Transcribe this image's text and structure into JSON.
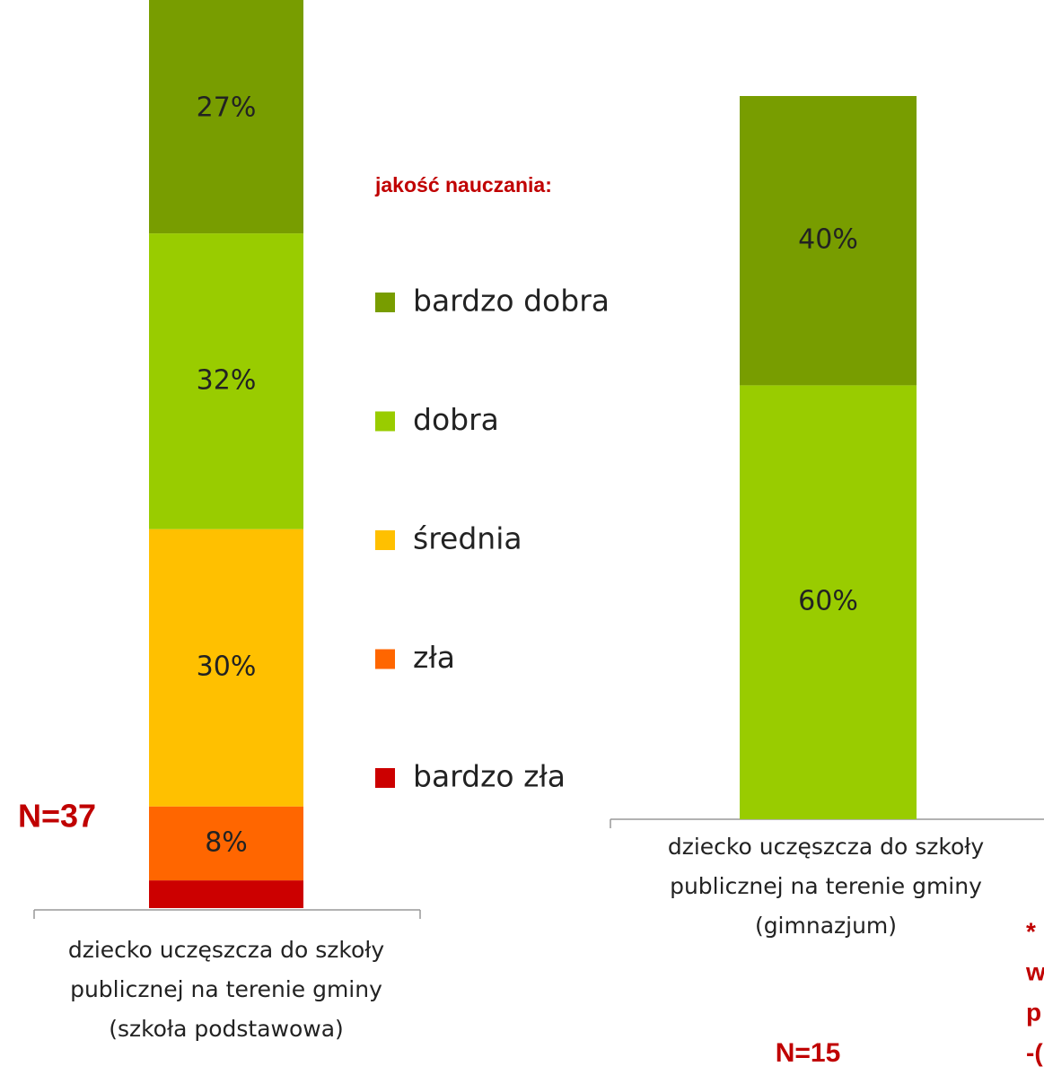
{
  "chart_data": {
    "type": "stacked_bar",
    "legend_title": "jakość nauczania:",
    "categories": [
      [
        "dziecko uczęszcza do szkoły",
        "publicznej na terenie gminy",
        "(szkoła podstawowa)"
      ],
      [
        "dziecko uczęszcza do szkoły",
        "publicznej na terenie gminy",
        "(gimnazjum)"
      ]
    ],
    "series": [
      {
        "name": "bardzo dobra",
        "color": "#789d00",
        "values": [
          27,
          40
        ],
        "value_labels": [
          "27%",
          "40%"
        ]
      },
      {
        "name": "dobra",
        "color": "#99cc00",
        "values": [
          32,
          60
        ],
        "value_labels": [
          "32%",
          "60%"
        ]
      },
      {
        "name": "średnia",
        "color": "#ffc000",
        "values": [
          30,
          0
        ],
        "value_labels": [
          "30%",
          null
        ]
      },
      {
        "name": "zła",
        "color": "#ff6600",
        "values": [
          8,
          0
        ],
        "value_labels": [
          "8%",
          null
        ]
      },
      {
        "name": "bardzo zła",
        "color": "#cc0000",
        "values": [
          3,
          0
        ],
        "value_labels": [
          null,
          null
        ]
      }
    ],
    "annotations": [
      "N=37",
      "N=15"
    ],
    "note": [
      "*",
      "w",
      "p",
      "-("
    ]
  }
}
